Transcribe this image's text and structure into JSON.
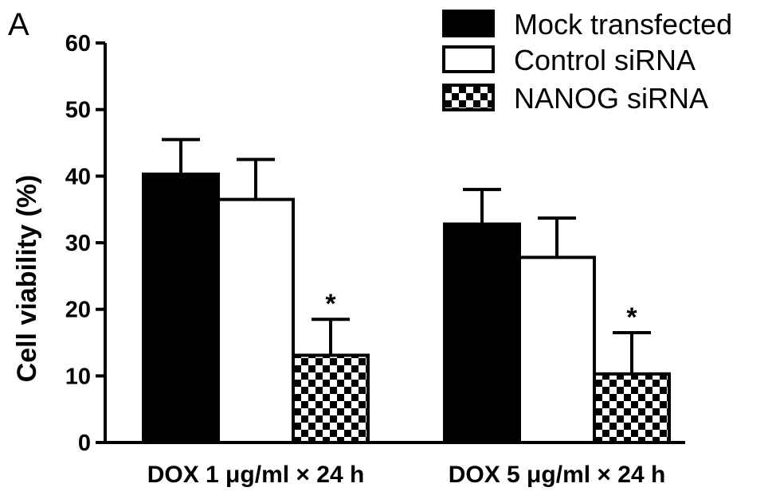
{
  "panel_label": "A",
  "chart_data": {
    "type": "bar",
    "title": "",
    "xlabel": "",
    "ylabel": "Cell viability (%)",
    "ylim": [
      0,
      60
    ],
    "yticks": [
      0,
      10,
      20,
      30,
      40,
      50,
      60
    ],
    "ytick_labels": [
      "0",
      "10",
      "20",
      "30",
      "40",
      "50",
      "60"
    ],
    "categories": [
      "DOX 1 μg/ml × 24 h",
      "DOX 5 μg/ml × 24 h"
    ],
    "series": [
      {
        "name": "Mock transfected",
        "values": [
          40.3,
          32.8
        ],
        "errors": [
          5.2,
          5.2
        ],
        "fill": "solid-black"
      },
      {
        "name": "Control siRNA",
        "values": [
          36.5,
          27.8
        ],
        "errors": [
          6.0,
          5.9
        ],
        "fill": "white"
      },
      {
        "name": "NANOG siRNA",
        "values": [
          13.1,
          10.3
        ],
        "errors": [
          5.4,
          6.2
        ],
        "fill": "checkerboard"
      }
    ],
    "annotations": [
      {
        "text": "*",
        "category": 0,
        "series": 2
      },
      {
        "text": "*",
        "category": 1,
        "series": 2
      }
    ],
    "legend_position": "top-right",
    "grid": false,
    "colors": {
      "bar_dark": "#000000",
      "bar_light": "#ffffff",
      "axis": "#000000"
    }
  }
}
